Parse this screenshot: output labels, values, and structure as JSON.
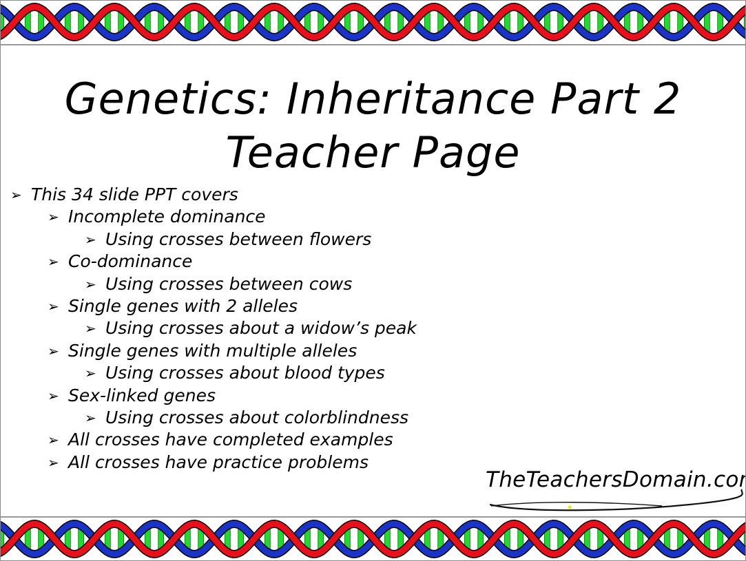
{
  "slide": {
    "title_line1": "Genetics: Inheritance Part 2",
    "title_line2": "Teacher Page",
    "bullets": [
      {
        "text": "This 34 slide PPT covers"
      },
      {
        "text": "Incomplete dominance"
      },
      {
        "text": "Using crosses between flowers"
      },
      {
        "text": "Co-dominance"
      },
      {
        "text": "Using crosses between cows"
      },
      {
        "text": "Single genes with 2 alleles"
      },
      {
        "text": "Using crosses about a widow’s peak"
      },
      {
        "text": "Single genes with multiple alleles"
      },
      {
        "text": "Using crosses about blood types"
      },
      {
        "text": "Sex-linked genes"
      },
      {
        "text": "Using crosses about colorblindness"
      },
      {
        "text": "All crosses have completed examples"
      },
      {
        "text": "All crosses have practice problems"
      }
    ],
    "logo_text": "TheTeachersDomain.com"
  },
  "colors": {
    "strand_red": "#e8111b",
    "strand_blue": "#1b34c8",
    "rung_green": "#22d92e",
    "background": "#ffffff",
    "text": "#000000"
  },
  "icons": {
    "bullet": "arrowhead-bullet-icon",
    "border": "dna-helix-border"
  }
}
